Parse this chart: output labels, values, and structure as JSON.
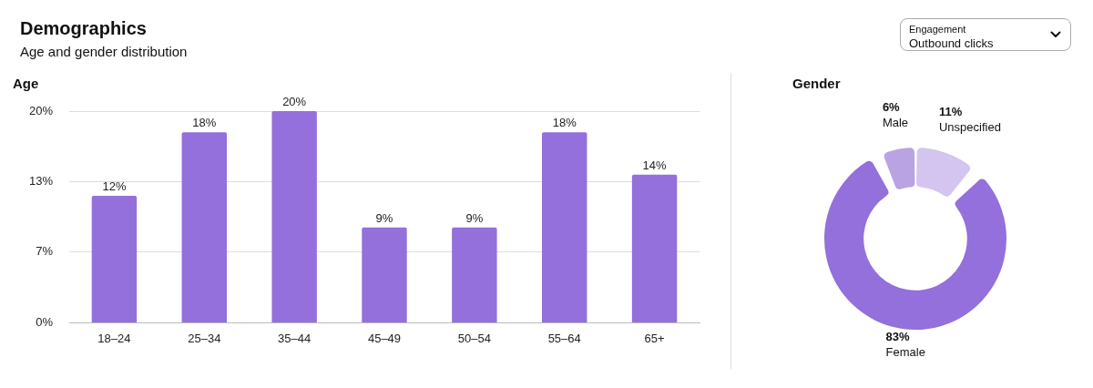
{
  "chart_data": [
    {
      "type": "other",
      "title": "Demographics",
      "subtitle": "Age and gender distribution",
      "annotations": [
        "Engagement",
        "Outbound clicks"
      ]
    },
    {
      "type": "bar",
      "title": "Age",
      "categories": [
        "18–24",
        "25–34",
        "35–44",
        "45–49",
        "50–54",
        "55–64",
        "65+"
      ],
      "values": [
        12,
        18,
        20,
        9,
        9,
        18,
        14
      ],
      "value_labels": [
        "12%",
        "18%",
        "20%",
        "9%",
        "9%",
        "18%",
        "14%"
      ],
      "color": "#9370db",
      "ylim": [
        0,
        20
      ],
      "yticks": [
        {
          "value": 0,
          "label": "0%"
        },
        {
          "value": 6.67,
          "label": "7%"
        },
        {
          "value": 13.33,
          "label": "13%"
        },
        {
          "value": 20,
          "label": "20%"
        }
      ],
      "grid": "y",
      "legend": false
    },
    {
      "type": "donut",
      "title": "Gender",
      "categories": [
        "Unspecified",
        "Female",
        "Male"
      ],
      "values": [
        11,
        83,
        6
      ],
      "value_labels": [
        "11%",
        "83%",
        "6%"
      ],
      "colors": [
        "#d3c5f0",
        "#9370db",
        "#b9a3e3"
      ],
      "legend": false
    }
  ]
}
